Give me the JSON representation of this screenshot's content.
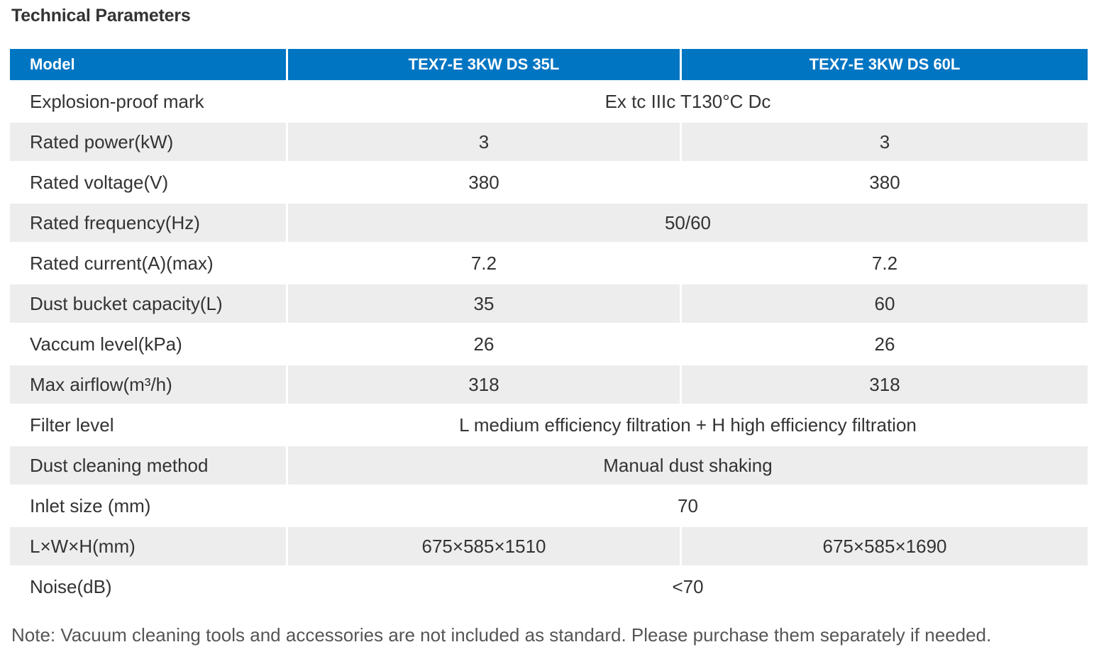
{
  "title": "Technical Parameters",
  "table": {
    "header": {
      "label": "Model",
      "col_a": "TEX7-E 3KW DS 35L",
      "col_b": "TEX7-E 3KW DS 60L"
    },
    "rows": [
      {
        "label": "Explosion-proof mark",
        "merged": true,
        "value": "Ex tc IIIc T130°C Dc"
      },
      {
        "label": "Rated power(kW)",
        "merged": false,
        "a": "3",
        "b": "3"
      },
      {
        "label": "Rated voltage(V)",
        "merged": false,
        "a": "380",
        "b": "380"
      },
      {
        "label": "Rated frequency(Hz)",
        "merged": true,
        "value": "50/60"
      },
      {
        "label": "Rated current(A)(max)",
        "merged": false,
        "a": "7.2",
        "b": "7.2"
      },
      {
        "label": "Dust bucket capacity(L)",
        "merged": false,
        "a": "35",
        "b": "60"
      },
      {
        "label": "Vaccum level(kPa)",
        "merged": false,
        "a": "26",
        "b": "26"
      },
      {
        "label": "Max airflow(m³/h)",
        "merged": false,
        "a": "318",
        "b": "318"
      },
      {
        "label": "Filter level",
        "merged": true,
        "value": "L medium efficiency filtration + H high efficiency filtration"
      },
      {
        "label": "Dust cleaning method",
        "merged": true,
        "value": "Manual dust shaking"
      },
      {
        "label": "Inlet size (mm)",
        "merged": true,
        "value": "70"
      },
      {
        "label": "L×W×H(mm)",
        "merged": false,
        "a": "675×585×1510",
        "b": "675×585×1690"
      },
      {
        "label": "Noise(dB)",
        "merged": true,
        "value": "<70"
      }
    ]
  },
  "note": "Note: Vacuum cleaning tools and accessories are not included as standard. Please purchase them separately if needed.",
  "colors": {
    "header_bg": "#0075c2",
    "header_text": "#ffffff",
    "row_shade": "#ededed",
    "text": "#333333"
  }
}
